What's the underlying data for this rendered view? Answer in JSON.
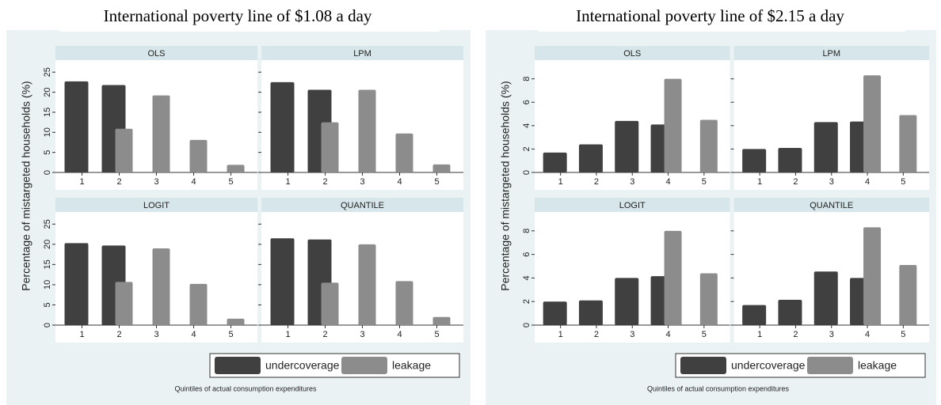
{
  "chart_data": [
    {
      "type": "bar",
      "title": "International poverty line of $1.08 a day",
      "y_label": "Percentage of mistargeted households (%)",
      "x_label": "Quintiles of actual consumption expenditures",
      "series": [
        {
          "name": "undercoverage",
          "color": "#404040"
        },
        {
          "name": "leakage",
          "color": "#8c8c8c"
        }
      ],
      "categories": [
        "1",
        "2",
        "3",
        "4",
        "5"
      ],
      "ylim": [
        0,
        28
      ],
      "yticks": [
        0,
        5,
        10,
        15,
        20,
        25
      ],
      "panels": [
        {
          "title": "OLS",
          "values": [
            [
              22.7,
              21.8,
              null,
              null,
              null
            ],
            [
              null,
              10.9,
              19.2,
              8.1,
              1.9
            ]
          ]
        },
        {
          "title": "LPM",
          "values": [
            [
              22.5,
              20.6,
              null,
              null,
              null
            ],
            [
              null,
              12.5,
              20.6,
              9.7,
              2.0
            ]
          ]
        },
        {
          "title": "LOGIT",
          "values": [
            [
              20.3,
              19.7,
              null,
              null,
              null
            ],
            [
              null,
              10.7,
              19.0,
              10.2,
              1.6
            ]
          ]
        },
        {
          "title": "QUANTILE",
          "values": [
            [
              21.5,
              21.2,
              null,
              null,
              null
            ],
            [
              null,
              10.5,
              20.0,
              10.9,
              2.0
            ]
          ]
        }
      ]
    },
    {
      "type": "bar",
      "title": "International poverty line of $2.15 a day",
      "y_label": "Percentage of mistargeted households (%)",
      "x_label": "Quintiles of actual consumption expenditures",
      "series": [
        {
          "name": "undercoverage",
          "color": "#404040"
        },
        {
          "name": "leakage",
          "color": "#8c8c8c"
        }
      ],
      "categories": [
        "1",
        "2",
        "3",
        "4",
        "5"
      ],
      "ylim": [
        0,
        9.6
      ],
      "yticks": [
        0,
        2,
        4,
        6,
        8
      ],
      "panels": [
        {
          "title": "OLS",
          "values": [
            [
              1.7,
              2.4,
              4.4,
              4.1,
              null
            ],
            [
              null,
              null,
              null,
              8.0,
              4.5
            ]
          ]
        },
        {
          "title": "LPM",
          "values": [
            [
              2.0,
              2.1,
              4.3,
              4.35,
              null
            ],
            [
              null,
              null,
              null,
              8.3,
              4.9
            ]
          ]
        },
        {
          "title": "LOGIT",
          "values": [
            [
              2.0,
              2.1,
              4.0,
              4.15,
              null
            ],
            [
              null,
              null,
              null,
              8.0,
              4.4
            ]
          ]
        },
        {
          "title": "QUANTILE",
          "values": [
            [
              1.7,
              2.15,
              4.55,
              4.0,
              null
            ],
            [
              null,
              null,
              null,
              8.3,
              5.1
            ]
          ]
        }
      ]
    }
  ]
}
